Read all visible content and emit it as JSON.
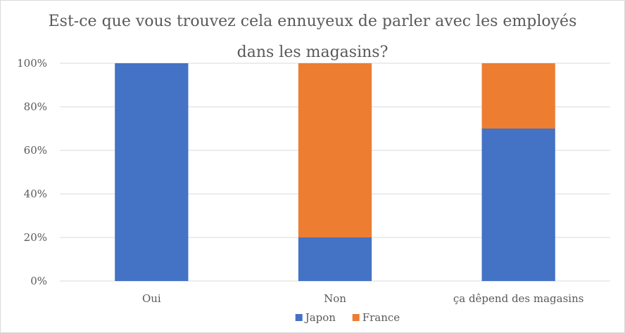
{
  "chart_data": {
    "type": "bar",
    "stacked": "percent",
    "title": "Est-ce que vous trouvez cela ennuyeux de parler avec les employés dans les magasins?",
    "categories": [
      "Oui",
      "Non",
      "ça dêpend des magasins"
    ],
    "series": [
      {
        "name": "Japon",
        "color": "#4472C4",
        "values": [
          100,
          20,
          70
        ]
      },
      {
        "name": "France",
        "color": "#ED7D31",
        "values": [
          0,
          80,
          30
        ]
      }
    ],
    "ylim": [
      0,
      100
    ],
    "yticks": [
      0,
      20,
      40,
      60,
      80,
      100
    ],
    "ytick_labels": [
      "0%",
      "20%",
      "40%",
      "60%",
      "80%",
      "100%"
    ],
    "grid": true,
    "legend_position": "bottom"
  }
}
